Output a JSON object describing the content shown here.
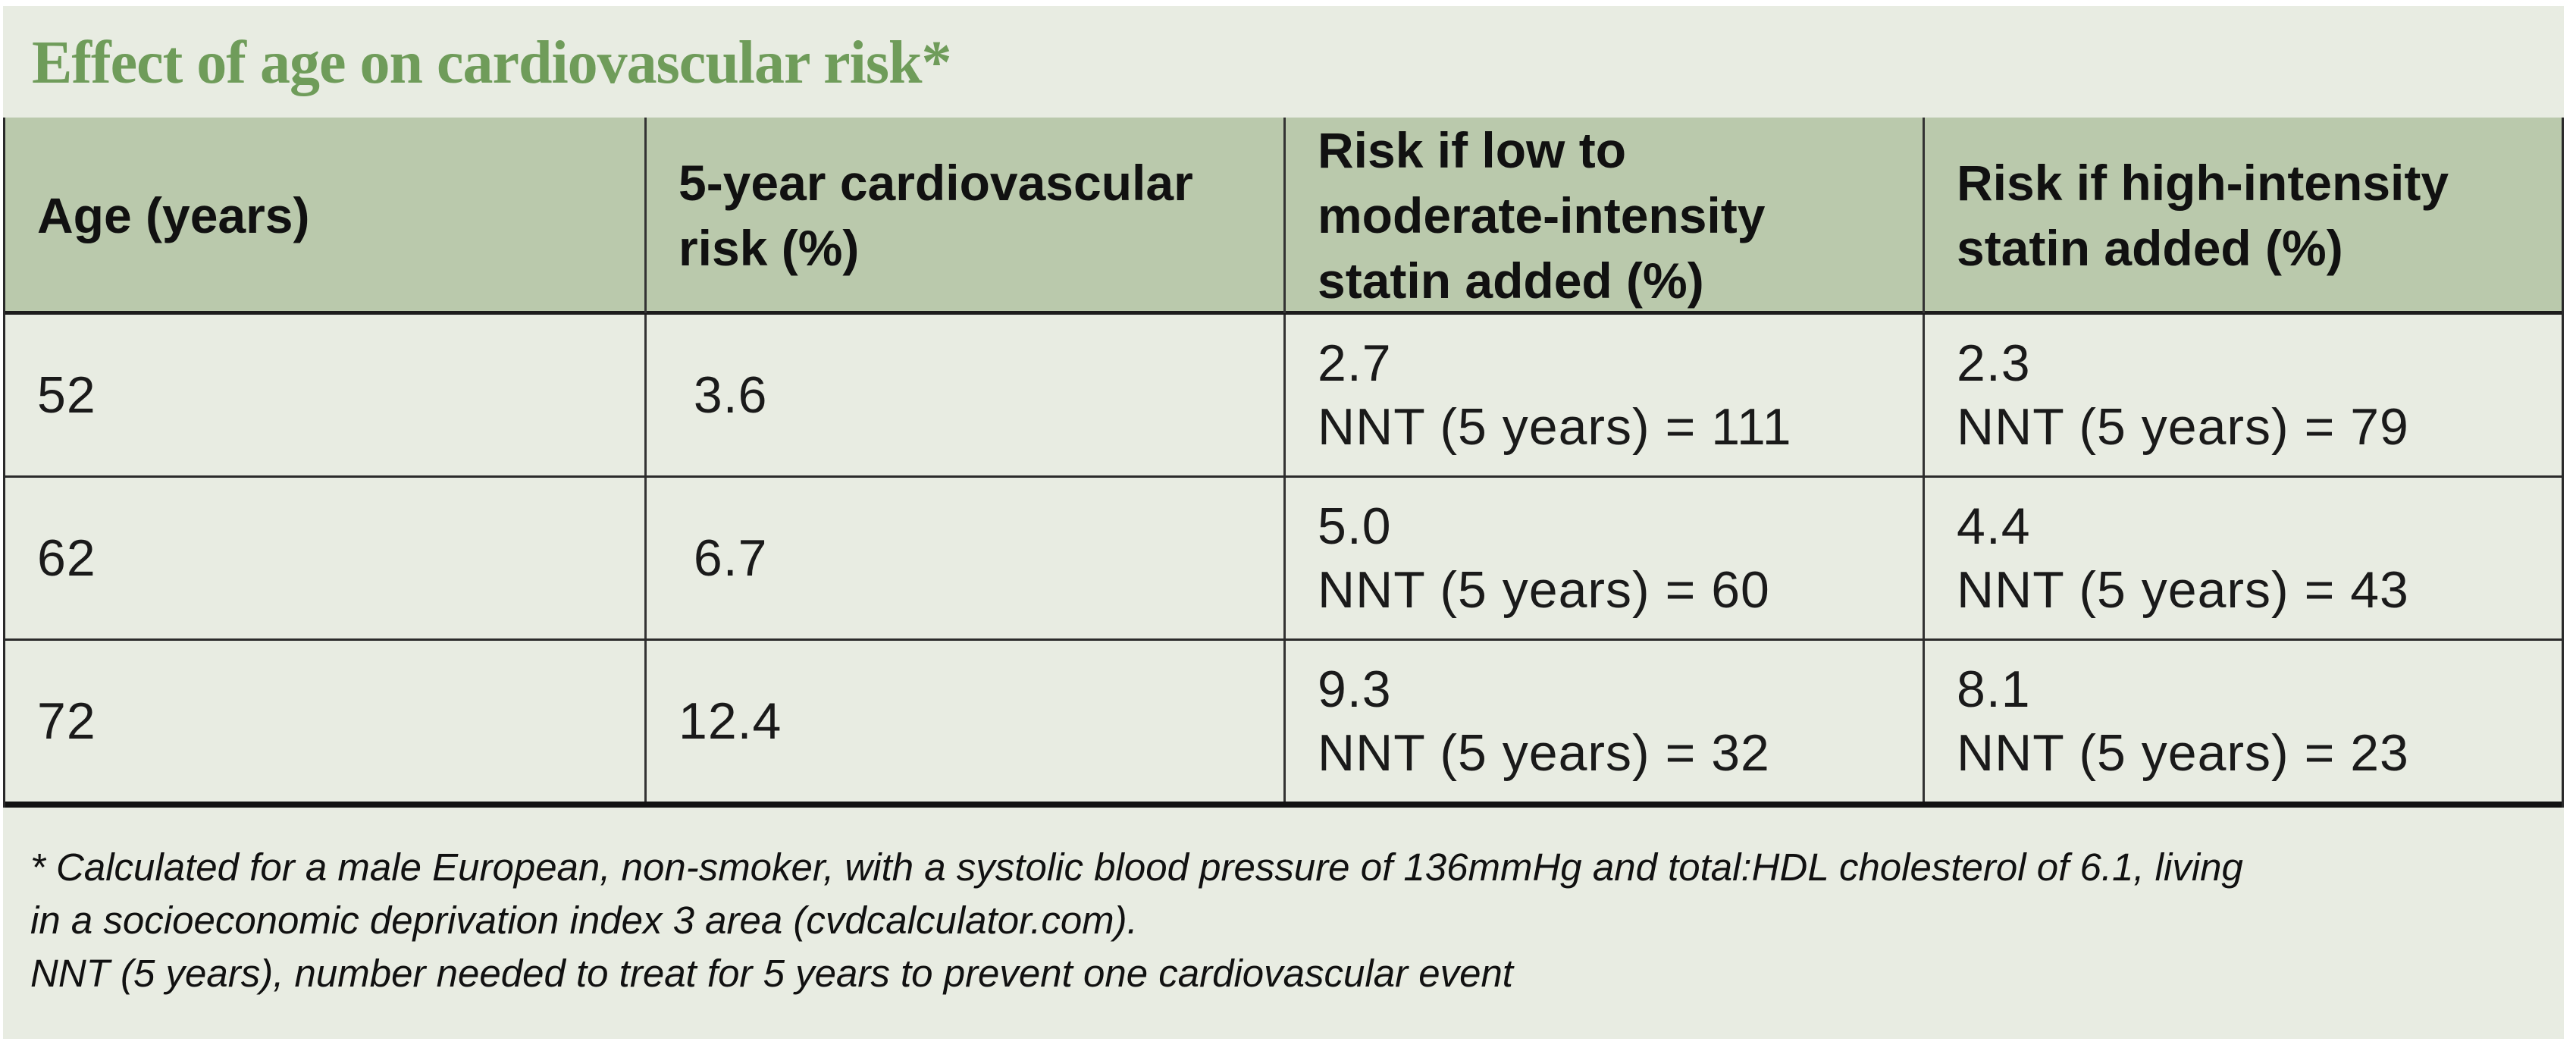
{
  "title": "Effect of age on cardiovascular risk*",
  "colors": {
    "title_green": "#6f9c5a",
    "header_row_bg": "#bac9ac",
    "panel_bg": "#e8ece2",
    "outer_margin": "#ffffff",
    "text": "#1a1a1a",
    "rule_lines": "#1c1c1c"
  },
  "table": {
    "headers": [
      "Age (years)",
      "5-year cardiovascular\nrisk (%)",
      "Risk if low to\nmoderate-intensity\nstatin added (%)",
      "Risk if high-intensity\nstatin added (%)"
    ],
    "rows": [
      {
        "age": "52",
        "five_year_risk": " 3.6",
        "low_moderate": "2.7\nNNT (5 years) = 111",
        "high": "2.3\nNNT (5 years) = 79"
      },
      {
        "age": "62",
        "five_year_risk": " 6.7",
        "low_moderate": "5.0\nNNT (5 years) = 60",
        "high": "4.4\nNNT (5 years) = 43"
      },
      {
        "age": "72",
        "five_year_risk": "12.4",
        "low_moderate": "9.3\nNNT (5 years) = 32",
        "high": "8.1\nNNT (5 years) = 23"
      }
    ]
  },
  "footnote": {
    "calculated": "* Calculated for a male European, non-smoker, with a systolic blood pressure of 136mmHg and total:HDL cholesterol of 6.1, living\nin a socioeconomic deprivation index 3 area (cvdcalculator.com).",
    "nnt_definition": "NNT (5 years), number needed to treat for 5 years to prevent one cardiovascular event"
  },
  "chart_data": {
    "type": "table",
    "title": "Effect of age on cardiovascular risk*",
    "columns": [
      "Age (years)",
      "5-year cardiovascular risk (%)",
      "Risk if low to moderate-intensity statin added (%)",
      "Risk if high-intensity statin added (%)"
    ],
    "series": {
      "age_years": [
        52,
        62,
        72
      ],
      "five_year_cv_risk_pct": [
        3.6,
        6.7,
        12.4
      ],
      "risk_if_low_moderate_statin_pct": [
        2.7,
        5.0,
        9.3
      ],
      "nnt_5_years_low_moderate": [
        111,
        60,
        32
      ],
      "risk_if_high_statin_pct": [
        2.3,
        4.4,
        8.1
      ],
      "nnt_5_years_high": [
        79,
        43,
        23
      ]
    },
    "footnotes": [
      "* Calculated for a male European, non-smoker, with a systolic blood pressure of 136mmHg and total:HDL cholesterol of 6.1, living in a socioeconomic deprivation index 3 area (cvdcalculator.com).",
      "NNT (5 years), number needed to treat for 5 years to prevent one cardiovascular event"
    ]
  }
}
